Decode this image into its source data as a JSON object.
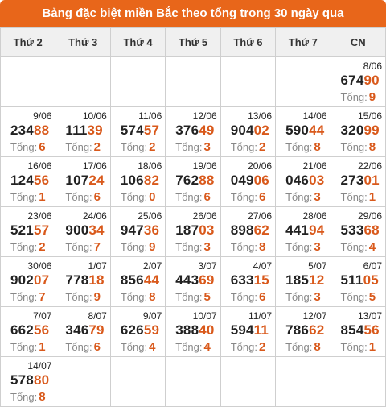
{
  "title": "Bảng đặc biệt miền Bắc theo tổng trong 30 ngày qua",
  "sum_label": "Tổng:",
  "accent_color": "#e8661a",
  "days": [
    "Thứ 2",
    "Thứ 3",
    "Thứ 4",
    "Thứ 5",
    "Thứ 6",
    "Thứ 7",
    "CN"
  ],
  "weeks": [
    [
      null,
      null,
      null,
      null,
      null,
      null,
      {
        "date": "8/06",
        "head": "674",
        "tail": "90",
        "sum": "9"
      }
    ],
    [
      {
        "date": "9/06",
        "head": "234",
        "tail": "88",
        "sum": "6"
      },
      {
        "date": "10/06",
        "head": "111",
        "tail": "39",
        "sum": "2"
      },
      {
        "date": "11/06",
        "head": "574",
        "tail": "57",
        "sum": "2"
      },
      {
        "date": "12/06",
        "head": "376",
        "tail": "49",
        "sum": "3"
      },
      {
        "date": "13/06",
        "head": "904",
        "tail": "02",
        "sum": "2"
      },
      {
        "date": "14/06",
        "head": "590",
        "tail": "44",
        "sum": "8"
      },
      {
        "date": "15/06",
        "head": "320",
        "tail": "99",
        "sum": "8"
      }
    ],
    [
      {
        "date": "16/06",
        "head": "124",
        "tail": "56",
        "sum": "1"
      },
      {
        "date": "17/06",
        "head": "107",
        "tail": "24",
        "sum": "6"
      },
      {
        "date": "18/06",
        "head": "106",
        "tail": "82",
        "sum": "0"
      },
      {
        "date": "19/06",
        "head": "762",
        "tail": "88",
        "sum": "6"
      },
      {
        "date": "20/06",
        "head": "049",
        "tail": "06",
        "sum": "6"
      },
      {
        "date": "21/06",
        "head": "046",
        "tail": "03",
        "sum": "3"
      },
      {
        "date": "22/06",
        "head": "273",
        "tail": "01",
        "sum": "1"
      }
    ],
    [
      {
        "date": "23/06",
        "head": "521",
        "tail": "57",
        "sum": "2"
      },
      {
        "date": "24/06",
        "head": "900",
        "tail": "34",
        "sum": "7"
      },
      {
        "date": "25/06",
        "head": "947",
        "tail": "36",
        "sum": "9"
      },
      {
        "date": "26/06",
        "head": "187",
        "tail": "03",
        "sum": "3"
      },
      {
        "date": "27/06",
        "head": "898",
        "tail": "62",
        "sum": "8"
      },
      {
        "date": "28/06",
        "head": "441",
        "tail": "94",
        "sum": "3"
      },
      {
        "date": "29/06",
        "head": "533",
        "tail": "68",
        "sum": "4"
      }
    ],
    [
      {
        "date": "30/06",
        "head": "902",
        "tail": "07",
        "sum": "7"
      },
      {
        "date": "1/07",
        "head": "778",
        "tail": "18",
        "sum": "9"
      },
      {
        "date": "2/07",
        "head": "856",
        "tail": "44",
        "sum": "8"
      },
      {
        "date": "3/07",
        "head": "443",
        "tail": "69",
        "sum": "5"
      },
      {
        "date": "4/07",
        "head": "633",
        "tail": "15",
        "sum": "6"
      },
      {
        "date": "5/07",
        "head": "185",
        "tail": "12",
        "sum": "3"
      },
      {
        "date": "6/07",
        "head": "511",
        "tail": "05",
        "sum": "5"
      }
    ],
    [
      {
        "date": "7/07",
        "head": "662",
        "tail": "56",
        "sum": "1"
      },
      {
        "date": "8/07",
        "head": "346",
        "tail": "79",
        "sum": "6"
      },
      {
        "date": "9/07",
        "head": "626",
        "tail": "59",
        "sum": "4"
      },
      {
        "date": "10/07",
        "head": "388",
        "tail": "40",
        "sum": "4"
      },
      {
        "date": "11/07",
        "head": "594",
        "tail": "11",
        "sum": "2"
      },
      {
        "date": "12/07",
        "head": "786",
        "tail": "62",
        "sum": "8"
      },
      {
        "date": "13/07",
        "head": "854",
        "tail": "56",
        "sum": "1"
      }
    ],
    [
      {
        "date": "14/07",
        "head": "578",
        "tail": "80",
        "sum": "8"
      },
      null,
      null,
      null,
      null,
      null,
      null
    ]
  ]
}
